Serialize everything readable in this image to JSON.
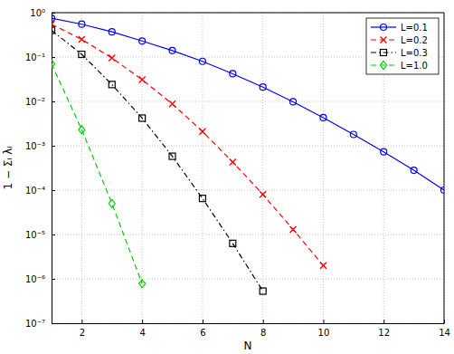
{
  "chart_data": {
    "type": "line",
    "x_label": "N",
    "y_label": "1 − Σᵢ λᵢ",
    "log": "y",
    "grid": true,
    "legend": "northeast",
    "xlim": [
      1,
      14
    ],
    "xticks": [
      2,
      4,
      6,
      8,
      10,
      12,
      14
    ],
    "ylim": [
      1e-07,
      1
    ],
    "yticks": [
      {
        "value": 1e-07,
        "label": "10⁻⁷"
      },
      {
        "value": 1e-06,
        "label": "10⁻⁶"
      },
      {
        "value": 1e-05,
        "label": "10⁻⁵"
      },
      {
        "value": 0.0001,
        "label": "10⁻⁴"
      },
      {
        "value": 0.001,
        "label": "10⁻³"
      },
      {
        "value": 0.01,
        "label": "10⁻²"
      },
      {
        "value": 0.1,
        "label": "10⁻¹"
      },
      {
        "value": 1,
        "label": "10⁰"
      }
    ],
    "series": [
      {
        "name": "L=0.1",
        "color": "#0000ff",
        "marker": "circle",
        "line_style": "solid",
        "x": [
          1,
          2,
          3,
          4,
          5,
          6,
          7,
          8,
          9,
          10,
          11,
          12,
          13,
          14
        ],
        "values": [
          0.75,
          0.55,
          0.37,
          0.23,
          0.14,
          0.08,
          0.042,
          0.021,
          0.0098,
          0.0043,
          0.0018,
          0.00073,
          0.00028,
          0.0001
        ]
      },
      {
        "name": "L=0.2",
        "color": "#ff0000",
        "marker": "x",
        "line_style": "dashed",
        "x": [
          1,
          2,
          3,
          4,
          5,
          6,
          7,
          8,
          9,
          10
        ],
        "values": [
          0.55,
          0.25,
          0.095,
          0.031,
          0.0088,
          0.0021,
          0.00043,
          8e-05,
          1.3e-05,
          2e-06
        ]
      },
      {
        "name": "L=0.3",
        "color": "#000000",
        "marker": "square",
        "line_style": "dashdot",
        "x": [
          1,
          2,
          3,
          4,
          5,
          6,
          7,
          8
        ],
        "values": [
          0.4,
          0.115,
          0.024,
          0.0042,
          0.00058,
          6.5e-05,
          6.3e-06,
          5.3e-07
        ]
      },
      {
        "name": "L=1.0",
        "color": "#00cc00",
        "marker": "diamond",
        "line_style": "dashed",
        "x": [
          1,
          2,
          3,
          4
        ],
        "values": [
          0.07,
          0.0023,
          5e-05,
          7.8e-07
        ]
      }
    ]
  }
}
